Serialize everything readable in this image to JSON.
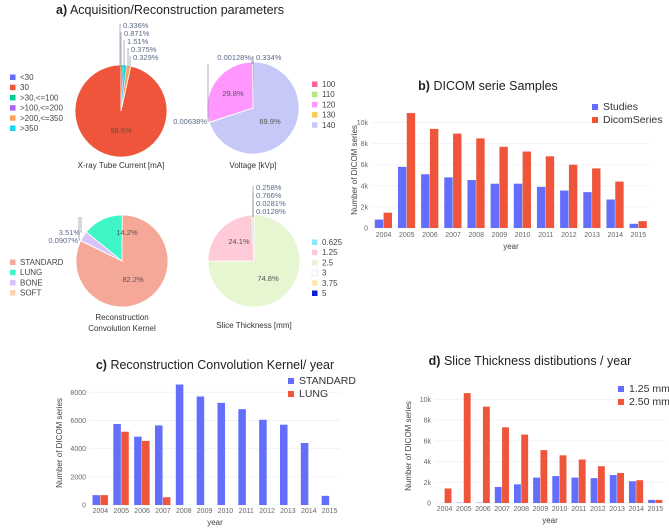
{
  "panel_a": {
    "prefix": "a)",
    "title": "Acquisition/Reconstruction parameters"
  },
  "chart_data": [
    {
      "type": "pie",
      "id": "xray",
      "title": "X-ray Tube Current [mA]",
      "labels": [
        "<30",
        "30",
        ">30,<=100",
        ">100,<=200",
        ">200,<=350",
        ">350"
      ],
      "values": [
        0.329,
        96.6,
        0.375,
        0.336,
        1.51,
        0.871
      ],
      "value_labels": [
        "0.329%",
        "96.6%",
        "0.375%",
        "0.336%",
        "1.51%",
        "0.871%"
      ],
      "colors": [
        "#636efa",
        "#ef553b",
        "#00cc96",
        "#ab63fa",
        "#ffa15a",
        "#19d3f3"
      ],
      "legend": "left"
    },
    {
      "type": "pie",
      "id": "voltage",
      "title": "Voltage [kVp]",
      "labels": [
        "100",
        "110",
        "120",
        "130",
        "140"
      ],
      "values": [
        0.334,
        0.00128,
        29.8,
        0.00638,
        69.9
      ],
      "value_labels": [
        "0.334%",
        "0.00128%",
        "29.8%",
        "0.00638%",
        "69.9%"
      ],
      "colors": [
        "#ff6692",
        "#b6e880",
        "#ff97ff",
        "#fecb52",
        "#c6c8f7"
      ],
      "legend": "right"
    },
    {
      "type": "pie",
      "id": "kernel",
      "title": "Reconstruction Convolution Kernel",
      "title_lines": [
        "Reconstruction",
        "Convolution Kernel"
      ],
      "labels": [
        "STANDARD",
        "LUNG",
        "BONE",
        "SOFT"
      ],
      "values": [
        82.2,
        14.2,
        3.51,
        0.0907
      ],
      "value_labels": [
        "82.2%",
        "14.2%",
        "3.51%",
        "0.0907%"
      ],
      "colors": [
        "#f5a898",
        "#3ff7c6",
        "#d8c2fa",
        "#fdd2ae"
      ],
      "legend": "left"
    },
    {
      "type": "pie",
      "id": "slice",
      "title": "Slice Thickness [mm]",
      "labels": [
        "0.625",
        "1.25",
        "2.5",
        "3",
        "3.75",
        "5"
      ],
      "values": [
        0.258,
        24.1,
        74.8,
        0.0281,
        0.766,
        0.0128
      ],
      "value_labels": [
        "0.258%",
        "24.1%",
        "74.8%",
        "0.0281%",
        "0.766%",
        "0.0128%"
      ],
      "colors": [
        "#8de9f9",
        "#ffcbd9",
        "#e5f6d0",
        "#ffffff",
        "#fde7ab",
        "#0a1fd8"
      ],
      "legend": "right"
    },
    {
      "type": "bar",
      "id": "b",
      "prefix": "b)",
      "title": "DICOM serie Samples",
      "xlabel": "year",
      "ylabel": "Number of DICOM series",
      "categories": [
        "2004",
        "2005",
        "2006",
        "2007",
        "2008",
        "2009",
        "2010",
        "2011",
        "2012",
        "2013",
        "2014",
        "2015"
      ],
      "series": [
        {
          "name": "Studies",
          "color": "#636efa",
          "values": [
            800,
            5800,
            5100,
            4800,
            4550,
            4200,
            4200,
            3900,
            3550,
            3400,
            2700,
            400
          ]
        },
        {
          "name": "DicomSeries",
          "color": "#ef553b",
          "values": [
            1450,
            10900,
            9400,
            8950,
            8500,
            7700,
            7250,
            6800,
            6000,
            5650,
            4400,
            650
          ]
        }
      ],
      "ylim": [
        0,
        11000
      ],
      "yticks": [
        0,
        2000,
        4000,
        6000,
        8000,
        10000
      ],
      "ytick_labels": [
        "0",
        "2k",
        "4k",
        "6k",
        "8k",
        "10k"
      ],
      "grid": true,
      "legend": "top-right"
    },
    {
      "type": "bar",
      "id": "c",
      "prefix": "c)",
      "title": "Reconstruction Convolution Kernel/ year",
      "xlabel": "year",
      "ylabel": "Number of DICOM series",
      "categories": [
        "2004",
        "2005",
        "2006",
        "2007",
        "2008",
        "2009",
        "2010",
        "2011",
        "2012",
        "2013",
        "2014",
        "2015"
      ],
      "series": [
        {
          "name": "STANDARD",
          "color": "#636efa",
          "values": [
            700,
            5750,
            4850,
            5650,
            8550,
            7700,
            7250,
            6800,
            6050,
            5700,
            4400,
            650
          ]
        },
        {
          "name": "LUNG",
          "color": "#ef553b",
          "values": [
            700,
            5200,
            4550,
            550,
            0,
            0,
            0,
            0,
            0,
            0,
            0,
            0
          ]
        }
      ],
      "ylim": [
        0,
        8800
      ],
      "yticks": [
        0,
        2000,
        4000,
        6000,
        8000
      ],
      "ytick_labels": [
        "0",
        "2000",
        "4000",
        "6000",
        "8000"
      ],
      "grid": true,
      "legend": "top-right"
    },
    {
      "type": "bar",
      "id": "d",
      "prefix": "d)",
      "title": "Slice Thickness distibutions / year",
      "xlabel": "year",
      "ylabel": "Number of DICOM series",
      "categories": [
        "2004",
        "2005",
        "2006",
        "2007",
        "2008",
        "2009",
        "2010",
        "2011",
        "2012",
        "2013",
        "2014",
        "2015"
      ],
      "series": [
        {
          "name": "1.25 mm",
          "color": "#636efa",
          "values": [
            0,
            30,
            30,
            1550,
            1800,
            2450,
            2600,
            2450,
            2400,
            2700,
            2100,
            300
          ]
        },
        {
          "name": "2.50 mm",
          "color": "#ef553b",
          "values": [
            1400,
            10600,
            9300,
            7300,
            6600,
            5100,
            4600,
            4200,
            3550,
            2900,
            2200,
            300
          ]
        }
      ],
      "ylim": [
        0,
        11000
      ],
      "yticks": [
        0,
        2000,
        4000,
        6000,
        8000,
        10000
      ],
      "ytick_labels": [
        "0",
        "2k",
        "4k",
        "6k",
        "8k",
        "10k"
      ],
      "grid": true,
      "legend": "top-right"
    }
  ]
}
